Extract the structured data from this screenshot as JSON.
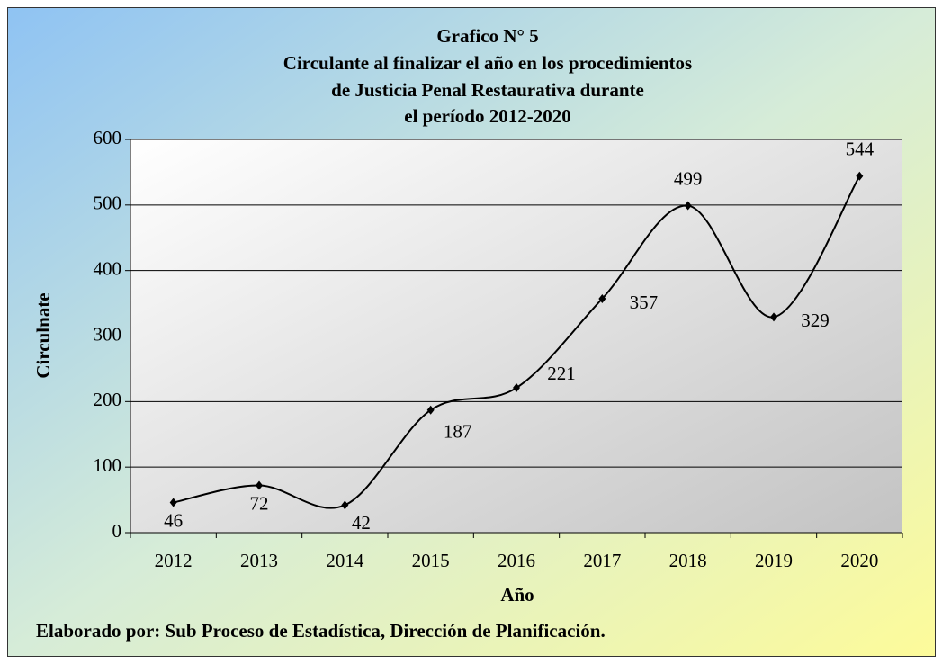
{
  "chart_data": {
    "type": "line",
    "title": "Grafico N° 5",
    "subtitle": [
      "Circulante al finalizar  el año en los procedimientos",
      "de Justicia  Penal Restaurativa durante",
      "el período  2012-2020"
    ],
    "x_label": "Año",
    "y_label": "Circulnate",
    "source": "Elaborado por: Sub Proceso de Estadística, Dirección de Planificación.",
    "categories": [
      "2012",
      "2013",
      "2014",
      "2015",
      "2016",
      "2017",
      "2018",
      "2019",
      "2020"
    ],
    "values": [
      46,
      72,
      42,
      187,
      221,
      357,
      499,
      329,
      544
    ],
    "color": "#000000",
    "smooth": true,
    "ylim": [
      0,
      600
    ],
    "yticks": [
      0,
      100,
      200,
      300,
      400,
      500,
      600
    ],
    "grid": true
  }
}
